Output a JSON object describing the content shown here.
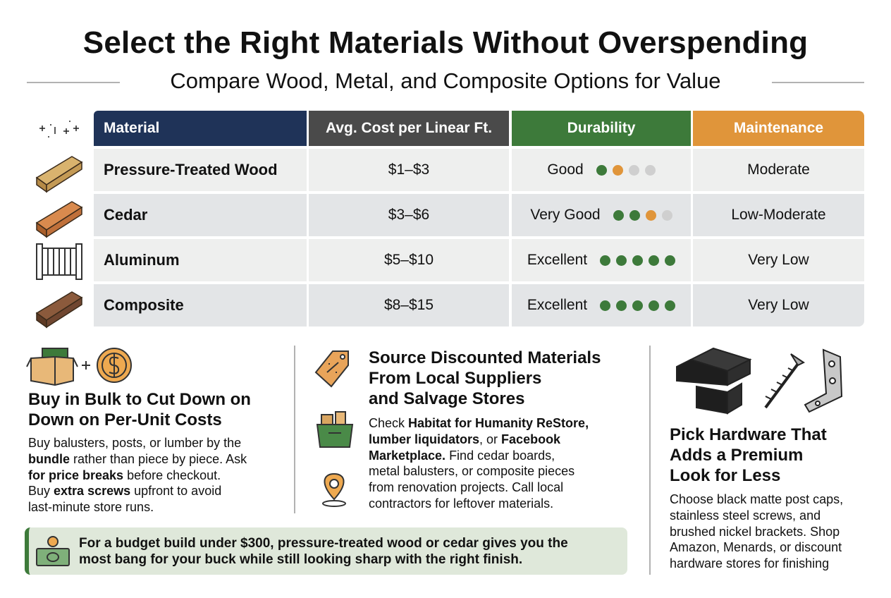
{
  "title": "Select the Right Materials Without Overspending",
  "subtitle": "Compare Wood, Metal, and Composite Options for Value",
  "table": {
    "header": [
      "Material",
      "Avg. Cost per Linear Ft.",
      "Durability",
      "Maintenance"
    ],
    "header_colors": [
      "#1f3358",
      "#4a4a4a",
      "#3d7a3a",
      "#e0953a"
    ],
    "rows": [
      {
        "material": "Pressure-Treated Wood",
        "cost": "$1–$3",
        "durability": "Good",
        "dots": [
          "#3d7a3a",
          "#e0953a",
          "#cfcfcf",
          "#cfcfcf"
        ],
        "maintenance": "Moderate"
      },
      {
        "material": "Cedar",
        "cost": "$3–$6",
        "durability": "Very Good",
        "dots": [
          "#3d7a3a",
          "#3d7a3a",
          "#e0953a",
          "#cfcfcf"
        ],
        "maintenance": "Low-Moderate"
      },
      {
        "material": "Aluminum",
        "cost": "$5–$10",
        "durability": "Excellent",
        "dots": [
          "#3d7a3a",
          "#3d7a3a",
          "#3d7a3a",
          "#3d7a3a",
          "#3d7a3a"
        ],
        "maintenance": "Very Low"
      },
      {
        "material": "Composite",
        "cost": "$8–$15",
        "durability": "Excellent",
        "dots": [
          "#3d7a3a",
          "#3d7a3a",
          "#3d7a3a",
          "#3d7a3a",
          "#3d7a3a"
        ],
        "maintenance": "Very Low"
      }
    ]
  },
  "tips": [
    {
      "heading": [
        "Buy in Bulk to Cut Down on",
        "Down on Per-Unit Costs"
      ],
      "body": [
        [
          "Buy balusters, posts, or lumber by the"
        ],
        [
          {
            "text": "bundle",
            "bold": true
          },
          " rather than piece by piece. Ask"
        ],
        [
          {
            "text": "for price breaks",
            "bold": true
          },
          " before checkout."
        ],
        [
          "Buy ",
          {
            "text": "extra screws",
            "bold": true
          },
          " upfront to avoid"
        ],
        [
          "last-minute store runs."
        ]
      ]
    },
    {
      "heading": [
        "Source Discounted Materials",
        "From Local Suppliers",
        "and Salvage Stores"
      ],
      "body": [
        [
          "Check ",
          {
            "text": "Habitat for Humanity ReStore,",
            "bold": true
          }
        ],
        [
          {
            "text": "lumber liquidators",
            "bold": true
          },
          ", or ",
          {
            "text": "Facebook",
            "bold": true
          }
        ],
        [
          {
            "text": "Marketplace.",
            "bold": true
          },
          " Find cedar boards,"
        ],
        [
          "metal balusters, or composite pieces"
        ],
        [
          "from renovation projects. Call local"
        ],
        [
          "contractors for leftover materials."
        ]
      ]
    },
    {
      "heading": [
        "Pick Hardware That",
        "Adds a Premium",
        "Look for Less"
      ],
      "body": [
        [
          "Choose black matte post caps,"
        ],
        [
          "stainless steel screws, and"
        ],
        [
          "brushed nickel brackets. Shop"
        ],
        [
          "Amazon, Menards, or discount"
        ],
        [
          "hardware stores for finishing"
        ]
      ]
    }
  ],
  "callout": [
    "For a budget build under $300, pressure-treated wood or cedar gives you the",
    "most bang for your buck while still looking sharp with the right finish."
  ]
}
